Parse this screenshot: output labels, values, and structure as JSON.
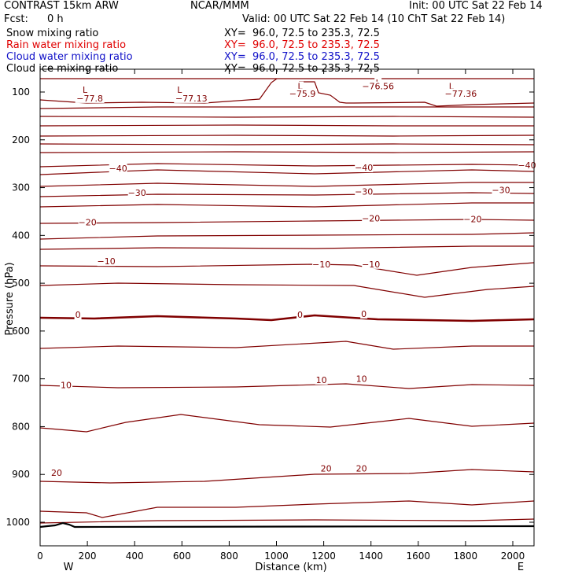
{
  "header": {
    "model": "CONTRAST 15km ARW",
    "org": "NCAR/MMM",
    "init": "Init: 00 UTC Sat 22 Feb 14",
    "fcst_label": "Fcst:",
    "fcst_value": "0 h",
    "valid": "Valid: 00 UTC Sat 22 Feb 14 (10 ChT Sat 22 Feb 14)"
  },
  "fields": [
    {
      "name": "Snow mixing ratio",
      "xy": "XY=  96.0, 72.5 to 235.3, 72.5",
      "color": "#000000"
    },
    {
      "name": "Rain water mixing ratio",
      "xy": "XY=  96.0, 72.5 to 235.3, 72.5",
      "color": "#e00000"
    },
    {
      "name": "Cloud water mixing ratio",
      "xy": "XY=  96.0, 72.5 to 235.3, 72.5",
      "color": "#1010c8"
    },
    {
      "name": "Cloud ice mixing ratio",
      "xy": "XY=  96.0, 72.5 to 235.3, 72.5",
      "color": "#000000"
    }
  ],
  "colors": {
    "contour": "#800000",
    "frame": "#000000",
    "terrain": "#000000"
  },
  "chart_data": {
    "type": "line",
    "xlabel": "Distance (km)",
    "ylabel": "Pressure (hPa)",
    "xlim": [
      0,
      2120
    ],
    "ylim": [
      70,
      1045
    ],
    "y_inverted": true,
    "xticks": [
      0,
      200,
      400,
      600,
      800,
      1000,
      1200,
      1400,
      1600,
      1800,
      2000
    ],
    "yticks": [
      100,
      200,
      300,
      400,
      500,
      600,
      700,
      800,
      900,
      1000
    ],
    "x_end_labels": {
      "left": "W",
      "right": "E"
    },
    "contour_levels": [
      -77.8,
      -77.13,
      -75.9,
      -76.56,
      -77.36,
      -40,
      -30,
      -20,
      -10,
      0,
      10,
      20
    ],
    "labels": [
      {
        "text": "L",
        "x": 190,
        "y": 95
      },
      {
        "text": "−77.8",
        "x": 210,
        "y": 113
      },
      {
        "text": "L",
        "x": 590,
        "y": 95
      },
      {
        "text": "−77.13",
        "x": 640,
        "y": 113
      },
      {
        "text": "L",
        "x": 1100,
        "y": 88
      },
      {
        "text": "−75.9",
        "x": 1110,
        "y": 103
      },
      {
        "text": "L",
        "x": 1430,
        "y": 80
      },
      {
        "text": "−76.56",
        "x": 1430,
        "y": 88
      },
      {
        "text": "L",
        "x": 1740,
        "y": 88
      },
      {
        "text": "−77.36",
        "x": 1780,
        "y": 103
      },
      {
        "text": "−40",
        "x": 330,
        "y": 260
      },
      {
        "text": "−40",
        "x": 1370,
        "y": 258
      },
      {
        "text": "−40",
        "x": 2060,
        "y": 253
      },
      {
        "text": "−30",
        "x": 410,
        "y": 311
      },
      {
        "text": "−30",
        "x": 1370,
        "y": 308
      },
      {
        "text": "−30",
        "x": 1950,
        "y": 305
      },
      {
        "text": "−20",
        "x": 200,
        "y": 372
      },
      {
        "text": "−20",
        "x": 1400,
        "y": 364
      },
      {
        "text": "−20",
        "x": 1830,
        "y": 366
      },
      {
        "text": "−10",
        "x": 280,
        "y": 454
      },
      {
        "text": "−10",
        "x": 1190,
        "y": 460
      },
      {
        "text": "−10",
        "x": 1400,
        "y": 460
      },
      {
        "text": "0",
        "x": 160,
        "y": 566
      },
      {
        "text": "0",
        "x": 1100,
        "y": 566
      },
      {
        "text": "0",
        "x": 1370,
        "y": 564
      },
      {
        "text": "10",
        "x": 110,
        "y": 713
      },
      {
        "text": "10",
        "x": 1190,
        "y": 702
      },
      {
        "text": "10",
        "x": 1360,
        "y": 700
      },
      {
        "text": "20",
        "x": 70,
        "y": 896
      },
      {
        "text": "20",
        "x": 1210,
        "y": 887
      },
      {
        "text": "20",
        "x": 1360,
        "y": 887
      }
    ]
  }
}
